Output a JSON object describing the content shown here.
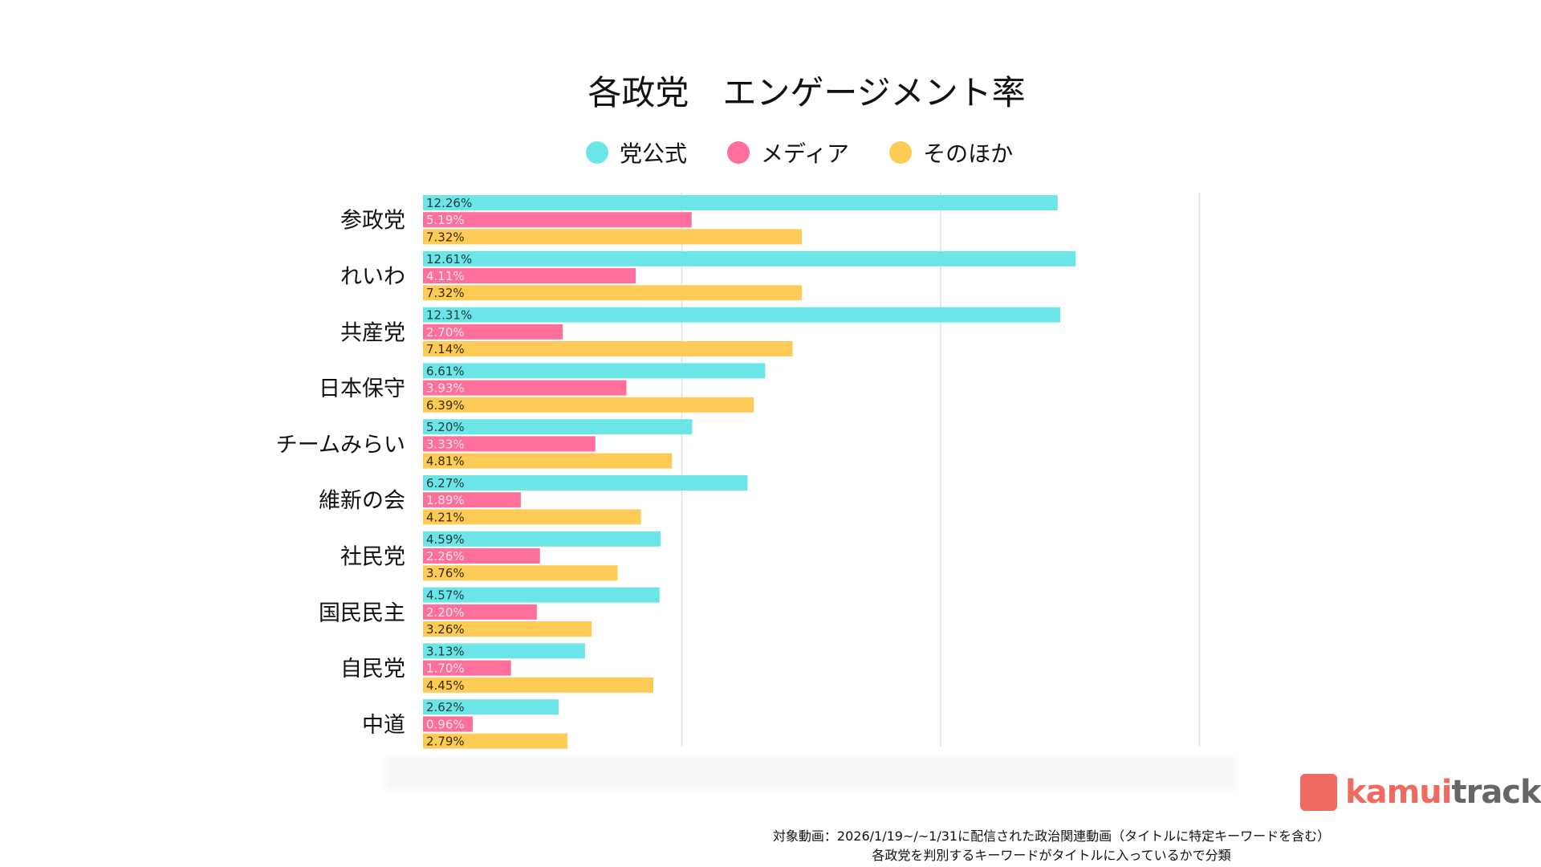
{
  "title": "各政党　エンゲージメント率",
  "legend": [
    {
      "label": "党公式",
      "color": "#6ce5e8"
    },
    {
      "label": "メディア",
      "color": "#ff6f9b"
    },
    {
      "label": "そのほか",
      "color": "#ffcb57"
    }
  ],
  "chart_data": {
    "type": "bar",
    "orientation": "horizontal",
    "title": "各政党　エンゲージメント率",
    "categories": [
      "参政党",
      "れいわ",
      "共産党",
      "日本保守",
      "チームみらい",
      "維新の会",
      "社民党",
      "国民民主",
      "自民党",
      "中道"
    ],
    "series": [
      {
        "name": "党公式",
        "color": "#6ce5e8",
        "values": [
          12.26,
          12.61,
          12.31,
          6.61,
          5.2,
          6.27,
          4.59,
          4.57,
          3.13,
          2.62
        ],
        "labels": [
          "12.26%",
          "12.61%",
          "12.31%",
          "6.61%",
          "5.20%",
          "6.27%",
          "4.59%",
          "4.57%",
          "3.13%",
          "2.62%"
        ]
      },
      {
        "name": "メディア",
        "color": "#ff6f9b",
        "values": [
          5.19,
          4.11,
          2.7,
          3.93,
          3.33,
          1.89,
          2.26,
          2.2,
          1.7,
          0.96
        ],
        "labels": [
          "5.19%",
          "4.11%",
          "2.70%",
          "3.93%",
          "3.33%",
          "1.89%",
          "2.26%",
          "2.20%",
          "1.70%",
          "0.96%"
        ]
      },
      {
        "name": "そのほか",
        "color": "#ffcb57",
        "values": [
          7.32,
          7.32,
          7.14,
          6.39,
          4.81,
          4.21,
          3.76,
          3.26,
          4.45,
          2.79
        ],
        "labels": [
          "7.32%",
          "7.32%",
          "7.14%",
          "6.39%",
          "4.81%",
          "4.21%",
          "3.76%",
          "3.26%",
          "4.45%",
          "2.79%"
        ]
      }
    ],
    "xlim": [
      0,
      15
    ],
    "grid": true,
    "legend_position": "top"
  },
  "logo": {
    "part1": "kamui",
    "part2": "tracker",
    "color1": "#ef6b62",
    "color2": "#666666"
  },
  "footnote": [
    "対象動画：2026/1/19~/~1/31に配信された政治関連動画（タイトルに特定キーワードを含む）",
    "各政党を判別するキーワードがタイトルに入っているかで分類"
  ]
}
